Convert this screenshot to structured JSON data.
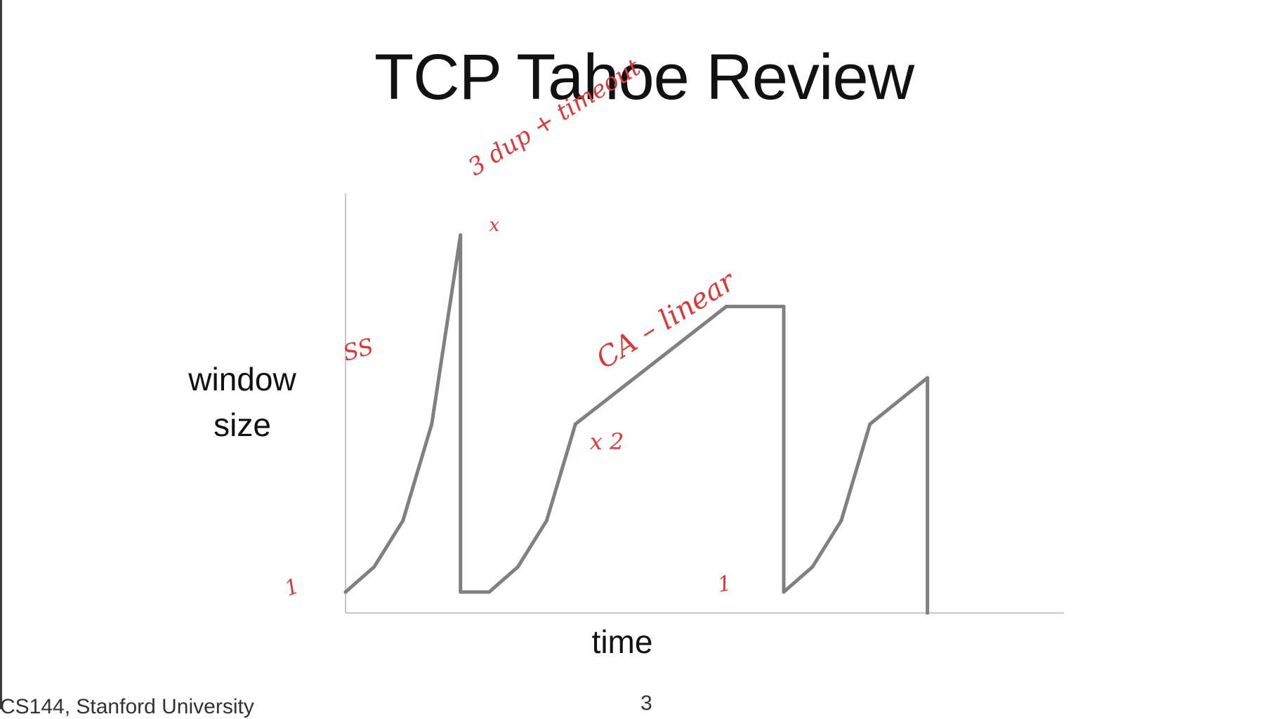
{
  "slide": {
    "title": "TCP Tahoe Review",
    "footer": "CS144, Stanford University",
    "page_number": "3"
  },
  "chart_data": {
    "type": "line",
    "title": "TCP Tahoe Review",
    "xlabel": "time",
    "ylabel_lines": [
      "window",
      "size"
    ],
    "grid": false,
    "legend": "none",
    "xlim": [
      0,
      100
    ],
    "ylim": [
      0,
      100
    ],
    "line_color": "#808080",
    "annotation_color": "#d83a3a",
    "series": [
      {
        "values": [
          [
            0,
            5
          ],
          [
            4,
            11
          ],
          [
            8,
            22
          ],
          [
            12,
            45
          ],
          [
            16,
            90
          ],
          [
            16,
            5
          ],
          [
            20,
            5
          ],
          [
            24,
            11
          ],
          [
            28,
            22
          ],
          [
            32,
            45
          ],
          [
            53,
            73
          ],
          [
            61,
            73
          ],
          [
            61,
            5
          ],
          [
            65,
            11
          ],
          [
            69,
            22
          ],
          [
            73,
            45
          ],
          [
            81,
            56
          ],
          [
            81,
            0
          ]
        ]
      }
    ],
    "annotations": [
      {
        "text": "3 dup + timeout",
        "x": 18,
        "y": 104,
        "rotate": -32,
        "size": 34
      },
      {
        "text": "x",
        "x": 20,
        "y": 91,
        "rotate": 0,
        "size": 26
      },
      {
        "text": "SS",
        "x": 0,
        "y": 60,
        "rotate": -15,
        "size": 32
      },
      {
        "text": "CA – linear",
        "x": 36,
        "y": 58,
        "rotate": -32,
        "size": 40
      },
      {
        "text": "x 2",
        "x": 34,
        "y": 39,
        "rotate": 0,
        "size": 32
      },
      {
        "text": "1",
        "x": 52,
        "y": 5,
        "rotate": -10,
        "size": 30
      },
      {
        "text": "1",
        "x": -8,
        "y": 4,
        "rotate": -20,
        "size": 30
      }
    ]
  }
}
